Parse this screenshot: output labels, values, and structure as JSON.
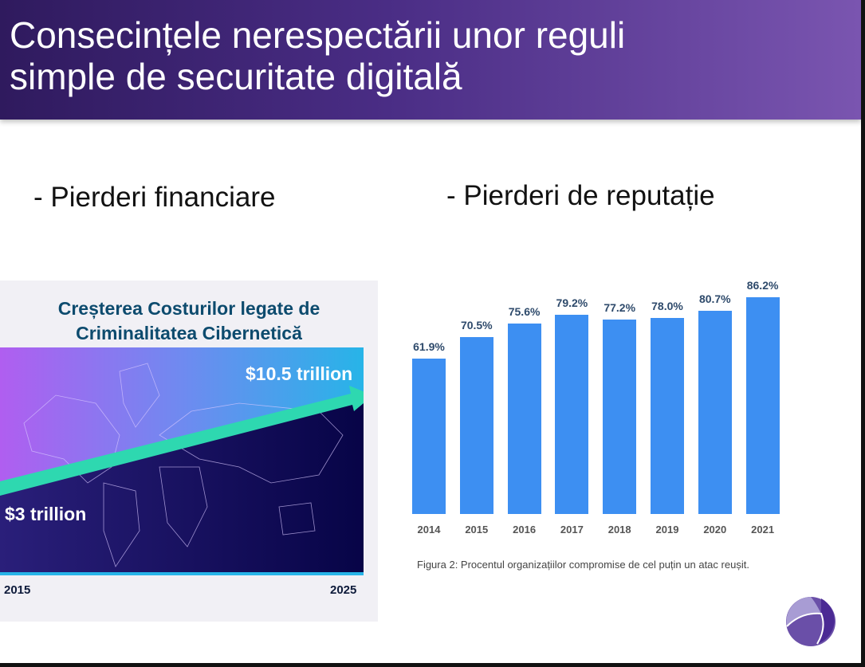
{
  "slide": {
    "title_line1": "Consecințele nerespectării unor reguli",
    "title_line2": "simple de securitate digitală",
    "bullet_left": "-  Pierderi financiare",
    "bullet_right": "-  Pierderi de reputație"
  },
  "infographic": {
    "title_line1": "Creșterea Costurilor legate de",
    "title_line2": "Criminalitatea Cibernetică",
    "start_value": "$3 trillion",
    "end_value": "$10.5 trillion",
    "start_year": "2015",
    "end_year": "2025"
  },
  "chart_data": {
    "type": "bar",
    "categories": [
      "2014",
      "2015",
      "2016",
      "2017",
      "2018",
      "2019",
      "2020",
      "2021"
    ],
    "values": [
      61.9,
      70.5,
      75.6,
      79.2,
      77.2,
      78.0,
      80.7,
      86.2
    ],
    "data_labels": [
      "61.9%",
      "70.5%",
      "75.6%",
      "79.2%",
      "77.2%",
      "78.0%",
      "80.7%",
      "86.2%"
    ],
    "caption": "Figura 2: Procentul organizațiilor compromise de cel puțin un atac reușit.",
    "ylim": [
      0,
      90
    ],
    "grid": false,
    "color": "#3d8ff2"
  },
  "colors": {
    "header_start": "#2f1a5e",
    "header_end": "#7a55b0",
    "bar": "#3d8ff2",
    "arrow": "#2ed8b0"
  }
}
